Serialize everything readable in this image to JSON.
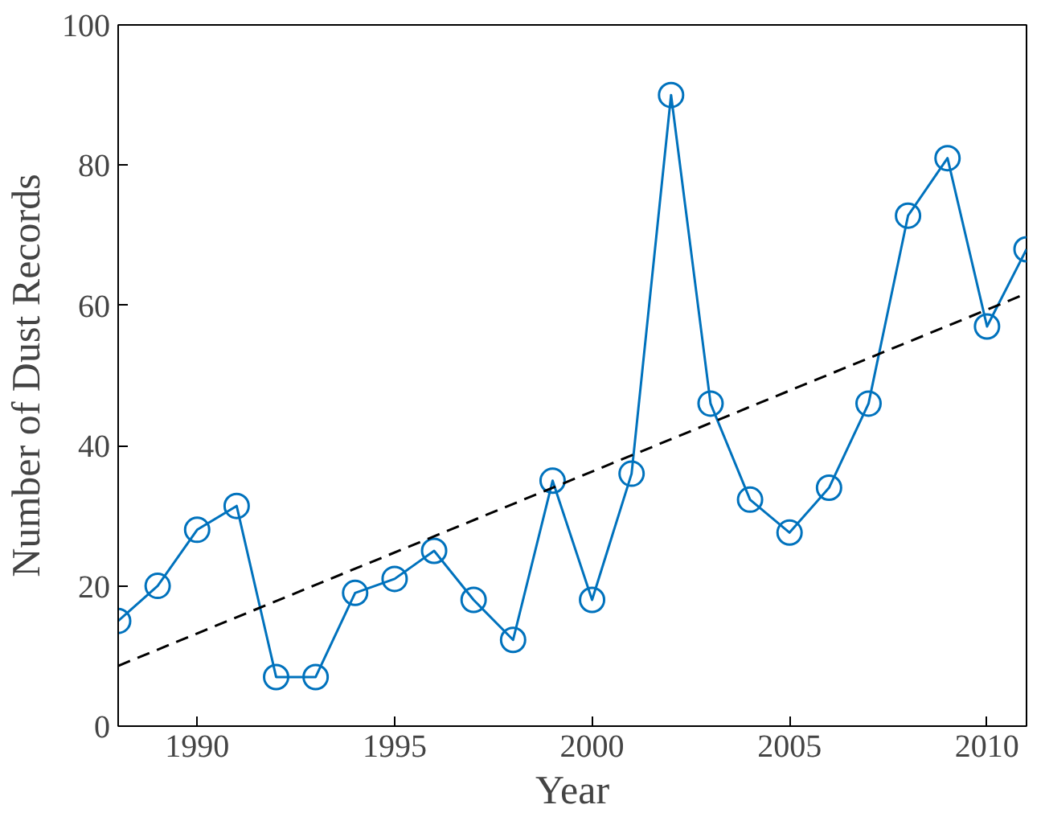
{
  "chart_data": {
    "type": "line",
    "xlabel": "Year",
    "ylabel": "Number of Dust Records",
    "x": [
      1988,
      1989,
      1990,
      1991,
      1992,
      1993,
      1994,
      1995,
      1996,
      1997,
      1998,
      1999,
      2000,
      2001,
      2002,
      2003,
      2004,
      2005,
      2006,
      2007,
      2008,
      2009,
      2010,
      2011
    ],
    "series": [
      {
        "color": "#0072bd",
        "marker": "circle",
        "line_style": "solid",
        "values": [
          15,
          20,
          28,
          31.4,
          7,
          7,
          19,
          21,
          25,
          18,
          12.3,
          35,
          18,
          36,
          90,
          46,
          32.3,
          27.6,
          34,
          46,
          72.8,
          81,
          57,
          68
        ]
      },
      {
        "type": "line",
        "color": "#000000",
        "marker": "none",
        "line_style": "dashed",
        "x": [
          1988,
          2011
        ],
        "values": [
          8.6,
          61.7
        ]
      }
    ],
    "xlim": [
      1988,
      2011
    ],
    "ylim": [
      0,
      100
    ],
    "xticks": [
      1990,
      1995,
      2000,
      2005,
      2010
    ],
    "yticks": [
      0,
      20,
      40,
      60,
      80,
      100
    ],
    "grid": false
  }
}
